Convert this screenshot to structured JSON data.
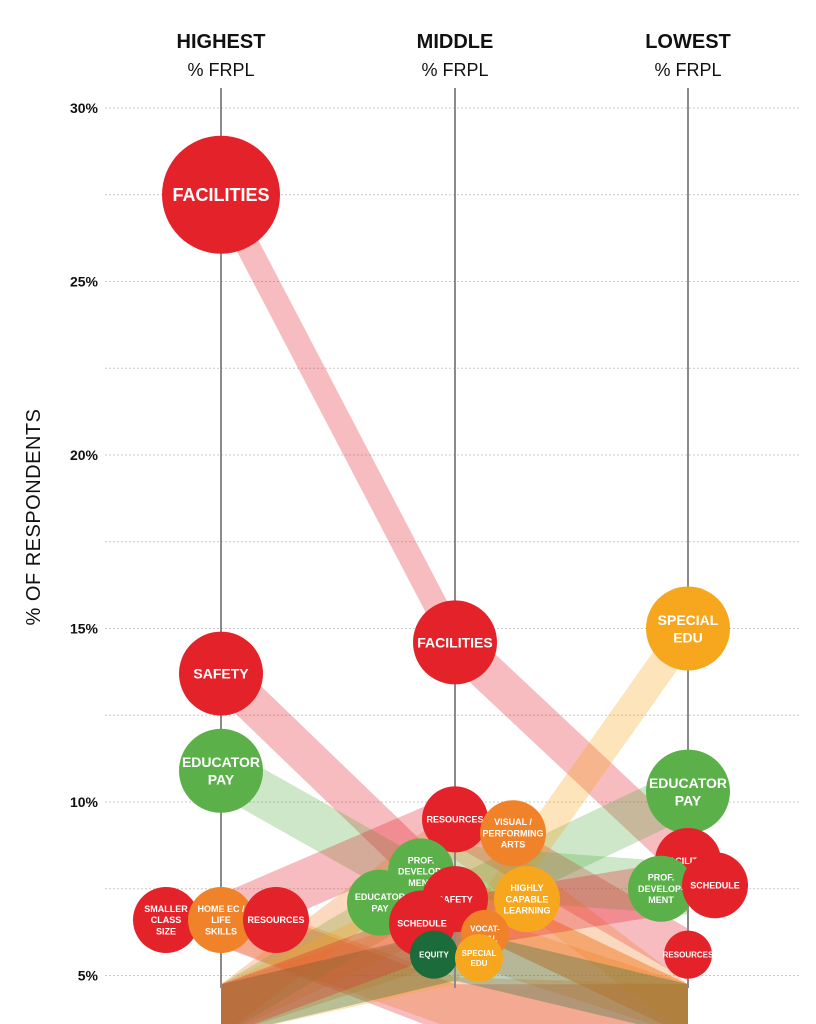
{
  "chart_data": {
    "type": "bubble-slope",
    "ylabel": "% OF RESPONDENTS",
    "ylim": [
      5,
      30
    ],
    "yticks": [
      {
        "value": 30,
        "label": "30%"
      },
      {
        "value": 25,
        "label": "25%"
      },
      {
        "value": 20,
        "label": "20%"
      },
      {
        "value": 15,
        "label": "15%"
      },
      {
        "value": 10,
        "label": "10%"
      },
      {
        "value": 5,
        "label": "5%"
      }
    ],
    "grid": true,
    "columns": [
      {
        "id": "highest",
        "title": "HIGHEST",
        "subtitle": "% FRPL"
      },
      {
        "id": "middle",
        "title": "MIDDLE",
        "subtitle": "% FRPL"
      },
      {
        "id": "lowest",
        "title": "LOWEST",
        "subtitle": "% FRPL"
      }
    ],
    "categories": [
      {
        "key": "facilities",
        "color": "#e3222a",
        "highest": 27.5,
        "middle": 14.6,
        "lowest": 8.3
      },
      {
        "key": "safety",
        "color": "#e3222a",
        "highest": 13.7,
        "middle": 7.2,
        "lowest": 4.0
      },
      {
        "key": "educator_pay",
        "color": "#5bb04a",
        "highest": 10.9,
        "middle": 7.1,
        "lowest": 10.3
      },
      {
        "key": "resources",
        "color": "#e3222a",
        "highest": 6.6,
        "middle": 9.5,
        "lowest": 5.6
      },
      {
        "key": "smaller_class_size",
        "color": "#e3222a",
        "highest": 6.6,
        "middle": 4.0,
        "lowest": 4.0
      },
      {
        "key": "home_ec",
        "color": "#f0822a",
        "highest": 6.6,
        "middle": 4.2,
        "lowest": 4.0
      },
      {
        "key": "special_edu",
        "color": "#f7a71e",
        "highest": 4.0,
        "middle": 5.5,
        "lowest": 15.0
      },
      {
        "key": "prof_development",
        "color": "#5bb04a",
        "highest": 4.0,
        "middle": 8.0,
        "lowest": 7.5
      },
      {
        "key": "visual_performing_arts",
        "color": "#f0822a",
        "highest": 4.0,
        "middle": 9.1,
        "lowest": 4.0
      },
      {
        "key": "highly_capable",
        "color": "#f7a71e",
        "highest": 4.0,
        "middle": 7.2,
        "lowest": 4.0
      },
      {
        "key": "vocational",
        "color": "#f0822a",
        "highest": 4.0,
        "middle": 6.2,
        "lowest": 4.0
      },
      {
        "key": "equity",
        "color": "#1c6b3a",
        "highest": 4.0,
        "middle": 5.6,
        "lowest": 4.0
      },
      {
        "key": "schedule",
        "color": "#e3222a",
        "highest": 4.0,
        "middle": 6.5,
        "lowest": 7.6
      }
    ],
    "bubbles": [
      {
        "col": "highest",
        "label": "FACILITIES",
        "value": 27.5,
        "color": "#e3222a",
        "size": "xl"
      },
      {
        "col": "highest",
        "label": "SAFETY",
        "value": 13.7,
        "color": "#e3222a",
        "size": "m"
      },
      {
        "col": "highest",
        "label": "EDUCATOR PAY",
        "value": 10.9,
        "color": "#5bb04a",
        "size": "m"
      },
      {
        "col": "highest",
        "label": "SMALLER CLASS SIZE",
        "value": 6.6,
        "color": "#e3222a",
        "size": "s",
        "nudge": -55
      },
      {
        "col": "highest",
        "label": "HOME EC / LIFE SKILLS",
        "value": 6.6,
        "color": "#f0822a",
        "size": "s",
        "nudge": 0
      },
      {
        "col": "highest",
        "label": "RESOURCES",
        "value": 6.6,
        "color": "#e3222a",
        "size": "s",
        "nudge": 55
      },
      {
        "col": "middle",
        "label": "FACILITIES",
        "value": 14.6,
        "color": "#e3222a",
        "size": "m"
      },
      {
        "col": "middle",
        "label": "RESOURCES",
        "value": 9.5,
        "color": "#e3222a",
        "size": "s"
      },
      {
        "col": "middle",
        "label": "VISUAL / PERFORMING ARTS",
        "value": 9.1,
        "color": "#f0822a",
        "size": "s",
        "nudge": 58
      },
      {
        "col": "middle",
        "label": "PROF. DEVELOP-MENT",
        "value": 8.0,
        "color": "#5bb04a",
        "size": "s",
        "nudge": -34
      },
      {
        "col": "middle",
        "label": "HIGHLY CAPABLE LEARNING",
        "value": 7.2,
        "color": "#f7a71e",
        "size": "s",
        "nudge": 72
      },
      {
        "col": "middle",
        "label": "EDUCATOR PAY",
        "value": 7.1,
        "color": "#5bb04a",
        "size": "s",
        "nudge": -75
      },
      {
        "col": "middle",
        "label": "SAFETY",
        "value": 7.2,
        "color": "#e3222a",
        "size": "s",
        "nudge": 0
      },
      {
        "col": "middle",
        "label": "SCHEDULE",
        "value": 6.5,
        "color": "#e3222a",
        "size": "s",
        "nudge": -33
      },
      {
        "col": "middle",
        "label": "VOCAT-IONAL",
        "value": 6.2,
        "color": "#f0822a",
        "size": "xs",
        "nudge": 30
      },
      {
        "col": "middle",
        "label": "EQUITY",
        "value": 5.6,
        "color": "#1c6b3a",
        "size": "xs",
        "nudge": -21
      },
      {
        "col": "middle",
        "label": "SPECIAL EDU",
        "value": 5.5,
        "color": "#f7a71e",
        "size": "xs",
        "nudge": 24
      },
      {
        "col": "lowest",
        "label": "SPECIAL EDU",
        "value": 15.0,
        "color": "#f7a71e",
        "size": "m"
      },
      {
        "col": "lowest",
        "label": "EDUCATOR PAY",
        "value": 10.3,
        "color": "#5bb04a",
        "size": "m"
      },
      {
        "col": "lowest",
        "label": "FACILITIES",
        "value": 8.3,
        "color": "#e3222a",
        "size": "s"
      },
      {
        "col": "lowest",
        "label": "PROF. DEVELOP-MENT",
        "value": 7.5,
        "color": "#5bb04a",
        "size": "s",
        "nudge": -27
      },
      {
        "col": "lowest",
        "label": "SCHEDULE",
        "value": 7.6,
        "color": "#e3222a",
        "size": "s",
        "nudge": 27
      },
      {
        "col": "lowest",
        "label": "RESOURCES",
        "value": 5.6,
        "color": "#e3222a",
        "size": "xs"
      }
    ]
  }
}
